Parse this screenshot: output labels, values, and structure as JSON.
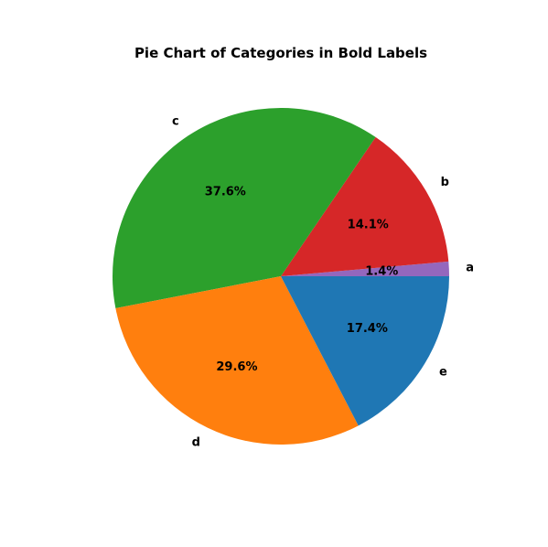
{
  "chart_data": {
    "type": "pie",
    "title": "Pie Chart of Categories in Bold Labels",
    "categories": [
      "a",
      "b",
      "c",
      "d",
      "e"
    ],
    "values": [
      1.4,
      14.1,
      37.6,
      29.6,
      17.4
    ],
    "percent_labels": [
      "1.4%",
      "14.1%",
      "37.6%",
      "29.6%",
      "17.4%"
    ],
    "colors": [
      "#9467bd",
      "#d62728",
      "#2ca02c",
      "#ff7f0e",
      "#1f77b4"
    ],
    "start_angle_deg": 0,
    "direction": "counterclockwise",
    "legend": "none"
  }
}
